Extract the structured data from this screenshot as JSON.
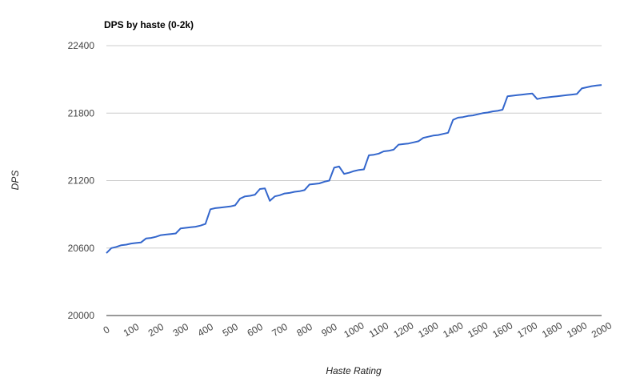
{
  "chart_data": {
    "type": "line",
    "title": "DPS by haste (0-2k)",
    "xlabel": "Haste Rating",
    "ylabel": "DPS",
    "xlim": [
      0,
      2000
    ],
    "ylim": [
      20000,
      22400
    ],
    "x_ticks": [
      "0",
      "100",
      "200",
      "300",
      "400",
      "500",
      "600",
      "700",
      "800",
      "900",
      "1000",
      "1100",
      "1200",
      "1300",
      "1400",
      "1500",
      "1600",
      "1700",
      "1800",
      "1900",
      "2000"
    ],
    "y_ticks": [
      "20000",
      "20600",
      "21200",
      "21800",
      "22400"
    ],
    "grid": true,
    "legend": "none",
    "line_color": "#3366cc",
    "series": [
      {
        "x": [
          0,
          20,
          40,
          60,
          80,
          100,
          120,
          140,
          160,
          180,
          200,
          220,
          240,
          260,
          280,
          300,
          320,
          340,
          360,
          380,
          400,
          420,
          440,
          460,
          480,
          500,
          520,
          540,
          560,
          580,
          600,
          620,
          640,
          660,
          680,
          700,
          720,
          740,
          760,
          780,
          800,
          820,
          840,
          860,
          880,
          900,
          920,
          940,
          960,
          980,
          1000,
          1020,
          1040,
          1060,
          1080,
          1100,
          1120,
          1140,
          1160,
          1180,
          1200,
          1220,
          1240,
          1260,
          1280,
          1300,
          1320,
          1340,
          1360,
          1380,
          1400,
          1420,
          1440,
          1460,
          1480,
          1500,
          1520,
          1540,
          1560,
          1580,
          1600,
          1620,
          1640,
          1660,
          1680,
          1700,
          1720,
          1740,
          1760,
          1780,
          1800,
          1820,
          1840,
          1860,
          1880,
          1900,
          1920,
          1940,
          1960,
          1980,
          2000
        ],
        "values": [
          20555,
          20600,
          20610,
          20625,
          20630,
          20640,
          20645,
          20650,
          20685,
          20690,
          20700,
          20715,
          20720,
          20725,
          20730,
          20775,
          20780,
          20785,
          20790,
          20800,
          20815,
          20945,
          20955,
          20960,
          20965,
          20970,
          20980,
          21040,
          21060,
          21065,
          21075,
          21125,
          21130,
          21020,
          21060,
          21070,
          21085,
          21090,
          21100,
          21105,
          21115,
          21165,
          21170,
          21175,
          21190,
          21200,
          21315,
          21325,
          21260,
          21270,
          21285,
          21295,
          21300,
          21425,
          21430,
          21440,
          21460,
          21465,
          21475,
          21520,
          21525,
          21530,
          21540,
          21550,
          21580,
          21590,
          21600,
          21605,
          21615,
          21625,
          21740,
          21760,
          21765,
          21775,
          21780,
          21790,
          21800,
          21805,
          21815,
          21820,
          21830,
          21950,
          21955,
          21960,
          21965,
          21970,
          21975,
          21925,
          21935,
          21940,
          21945,
          21950,
          21955,
          21960,
          21965,
          21970,
          22020,
          22030,
          22040,
          22045,
          22050
        ]
      }
    ]
  }
}
